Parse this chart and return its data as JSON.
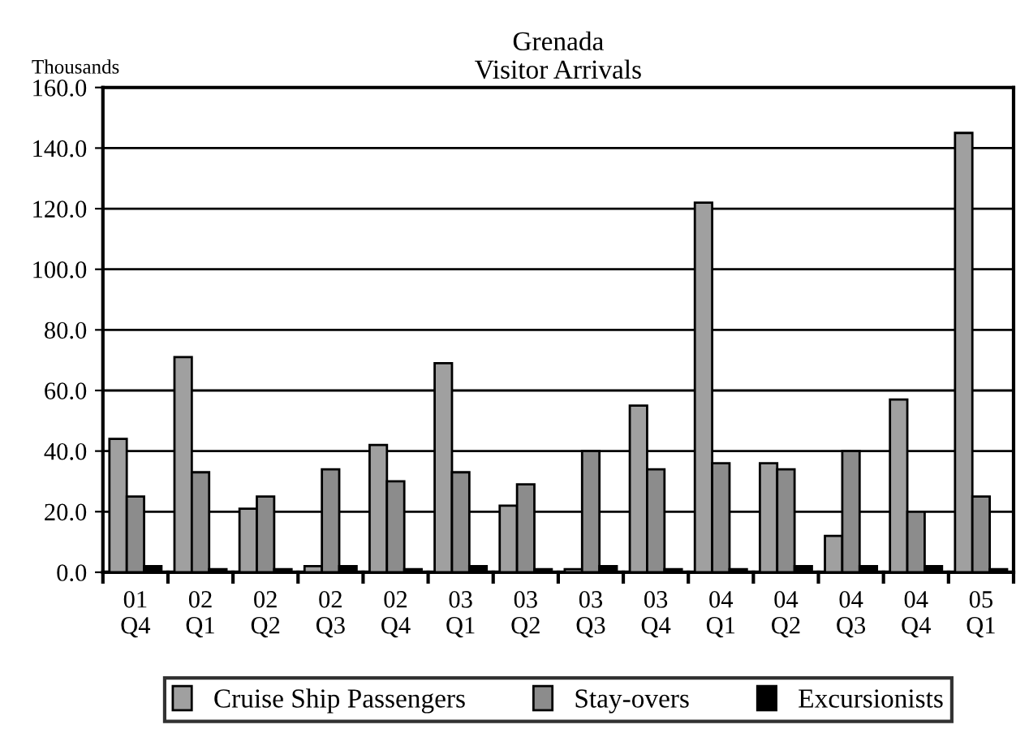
{
  "chart_data": {
    "type": "bar",
    "title": "Grenada\nVisitor Arrivals",
    "ylabel": "Thousands",
    "categories": [
      "01\nQ4",
      "02\nQ1",
      "02\nQ2",
      "02\nQ3",
      "02\nQ4",
      "03\nQ1",
      "03\nQ2",
      "03\nQ3",
      "03\nQ4",
      "04\nQ1",
      "04\nQ2",
      "04\nQ3",
      "04\nQ4",
      "05\nQ1"
    ],
    "series": [
      {
        "name": "Cruise Ship Passengers",
        "color": "#a0a0a0",
        "values": [
          44,
          71,
          21,
          2,
          42,
          69,
          22,
          1,
          55,
          122,
          36,
          12,
          57,
          145
        ]
      },
      {
        "name": "Stay-overs",
        "color": "#8c8c8c",
        "values": [
          25,
          33,
          25,
          34,
          30,
          33,
          29,
          40,
          34,
          36,
          34,
          40,
          20,
          25
        ]
      },
      {
        "name": "Excursionists",
        "color": "#000000",
        "values": [
          2,
          1,
          1,
          2,
          1,
          2,
          1,
          2,
          1,
          1,
          2,
          2,
          2,
          1
        ]
      }
    ],
    "ylim": [
      0,
      160
    ],
    "yticks": [
      {
        "value": 0,
        "label": "0.0"
      },
      {
        "value": 20,
        "label": "20.0"
      },
      {
        "value": 40,
        "label": "40.0"
      },
      {
        "value": 60,
        "label": "60.0"
      },
      {
        "value": 80,
        "label": "80.0"
      },
      {
        "value": 100,
        "label": "100.0"
      },
      {
        "value": 120,
        "label": "120.0"
      },
      {
        "value": 140,
        "label": "140.0"
      },
      {
        "value": 160,
        "label": "160.0"
      }
    ],
    "grid": "y",
    "legend": "bottom"
  }
}
